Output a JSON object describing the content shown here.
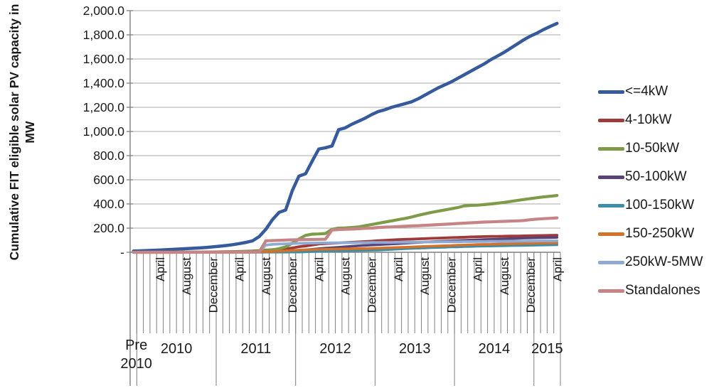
{
  "chart_data": {
    "type": "line",
    "title": "",
    "ylabel": "Cumulative FIT eligible solar PV capacity in MW",
    "ylabel_line1": "Cumulative FIT eligible solar PV capacity in",
    "ylabel_line2": "MW",
    "ylim": [
      0,
      2000
    ],
    "grid": true,
    "legend_position": "right",
    "y_ticks": [
      {
        "label": "2,000.0",
        "value": 2000
      },
      {
        "label": "1,800.0",
        "value": 1800
      },
      {
        "label": "1,600.0",
        "value": 1600
      },
      {
        "label": "1,400.0",
        "value": 1400
      },
      {
        "label": "1,200.0",
        "value": 1200
      },
      {
        "label": "1,000.0",
        "value": 1000
      },
      {
        "label": "800.0",
        "value": 800
      },
      {
        "label": "600.0",
        "value": 600
      },
      {
        "label": "400.0",
        "value": 400
      },
      {
        "label": "200.0",
        "value": 200
      },
      {
        "label": "-",
        "value": 0
      }
    ],
    "x_axis": {
      "first_category": "Pre 2010",
      "first_category_line1": "Pre",
      "first_category_line2": "2010",
      "year_groups": [
        {
          "year": "2010",
          "months": 12
        },
        {
          "year": "2011",
          "months": 12
        },
        {
          "year": "2012",
          "months": 12
        },
        {
          "year": "2013",
          "months": 12
        },
        {
          "year": "2014",
          "months": 12
        },
        {
          "year": "2015",
          "months": 4
        }
      ],
      "month_names": {
        "4": "April",
        "8": "August",
        "12": "December"
      }
    },
    "series": [
      {
        "name": "<=4kW",
        "color": "#365A9B",
        "width": 4.5,
        "values": [
          10,
          12,
          14,
          16,
          18,
          21,
          24,
          27,
          30,
          33,
          36,
          40,
          45,
          50,
          56,
          63,
          72,
          82,
          95,
          130,
          190,
          270,
          330,
          350,
          510,
          630,
          650,
          755,
          855,
          865,
          880,
          1015,
          1030,
          1060,
          1085,
          1110,
          1140,
          1165,
          1180,
          1200,
          1215,
          1230,
          1245,
          1270,
          1300,
          1330,
          1360,
          1385,
          1410,
          1440,
          1470,
          1500,
          1530,
          1560,
          1595,
          1625,
          1655,
          1690,
          1725,
          1760,
          1790,
          1815,
          1845,
          1870,
          1895
        ]
      },
      {
        "name": "4-10kW",
        "color": "#9E3B38",
        "width": 3.8,
        "values": [
          0,
          0,
          0,
          0,
          1,
          1,
          1,
          1,
          2,
          2,
          2,
          3,
          3,
          4,
          5,
          6,
          7,
          9,
          11,
          14,
          18,
          22,
          26,
          29,
          36,
          46,
          52,
          60,
          68,
          71,
          74,
          77,
          80,
          83,
          86,
          89,
          92,
          96,
          99,
          102,
          105,
          107,
          109,
          111,
          113,
          115,
          117,
          119,
          121,
          123,
          125,
          127,
          128,
          130,
          131,
          132,
          133,
          134,
          135,
          136,
          137,
          138,
          139,
          140,
          141
        ]
      },
      {
        "name": "10-50kW",
        "color": "#7D9B49",
        "width": 4.2,
        "values": [
          0,
          0,
          0,
          0,
          0,
          0,
          0,
          1,
          1,
          1,
          1,
          1,
          1,
          2,
          2,
          3,
          4,
          6,
          8,
          10,
          14,
          20,
          30,
          45,
          75,
          110,
          140,
          150,
          152,
          155,
          190,
          200,
          202,
          205,
          210,
          220,
          230,
          240,
          250,
          260,
          270,
          280,
          292,
          305,
          318,
          330,
          340,
          350,
          360,
          370,
          385,
          388,
          390,
          395,
          400,
          406,
          413,
          421,
          429,
          437,
          445,
          452,
          458,
          464,
          470
        ]
      },
      {
        "name": "50-100kW",
        "color": "#5A4377",
        "width": 3.6,
        "values": [
          0,
          0,
          0,
          0,
          0,
          0,
          0,
          0,
          0,
          0,
          0,
          0,
          0,
          0,
          0,
          1,
          1,
          2,
          2,
          3,
          4,
          5,
          7,
          9,
          12,
          16,
          20,
          25,
          30,
          34,
          38,
          42,
          46,
          50,
          54,
          57,
          60,
          63,
          66,
          69,
          72,
          75,
          78,
          81,
          84,
          87,
          90,
          92,
          95,
          97,
          99,
          101,
          103,
          105,
          107,
          109,
          111,
          113,
          115,
          117,
          119,
          120,
          121,
          122,
          123
        ]
      },
      {
        "name": "100-150kW",
        "color": "#3D8CA8",
        "width": 3.6,
        "values": [
          0,
          0,
          0,
          0,
          0,
          0,
          0,
          0,
          0,
          0,
          0,
          0,
          0,
          0,
          0,
          0,
          0,
          0,
          0,
          0,
          1,
          1,
          1,
          1,
          2,
          2,
          4,
          6,
          8,
          10,
          11,
          12,
          13,
          14,
          15,
          16,
          17,
          18,
          21,
          24,
          27,
          30,
          32,
          34,
          36,
          38,
          40,
          42,
          44,
          45,
          47,
          48,
          50,
          51,
          52,
          53,
          54,
          55,
          56,
          57,
          58,
          59,
          60,
          61,
          62
        ]
      },
      {
        "name": "150-250kW",
        "color": "#D4712B",
        "width": 3.6,
        "values": [
          0,
          0,
          0,
          0,
          0,
          0,
          0,
          0,
          0,
          0,
          0,
          0,
          0,
          0,
          0,
          1,
          1,
          2,
          3,
          4,
          5,
          8,
          10,
          12,
          15,
          18,
          20,
          22,
          24,
          25,
          26,
          27,
          28,
          29,
          30,
          31,
          32,
          34,
          36,
          38,
          40,
          42,
          44,
          46,
          48,
          50,
          52,
          54,
          56,
          58,
          60,
          62,
          64,
          65,
          66,
          68,
          69,
          70,
          72,
          73,
          74,
          75,
          76,
          77,
          78
        ]
      },
      {
        "name": "250kW-5MW",
        "color": "#90ABD3",
        "width": 3.8,
        "values": [
          0,
          0,
          0,
          0,
          0,
          0,
          0,
          0,
          0,
          0,
          0,
          0,
          0,
          0,
          0,
          1,
          1,
          2,
          3,
          5,
          60,
          65,
          68,
          70,
          72,
          74,
          75,
          76,
          77,
          77,
          78,
          78,
          79,
          79,
          80,
          80,
          81,
          81,
          82,
          82,
          83,
          83,
          84,
          84,
          85,
          85,
          86,
          86,
          87,
          87,
          88,
          88,
          89,
          89,
          90,
          90,
          91,
          91,
          92,
          92,
          93,
          93,
          94,
          94,
          95
        ]
      },
      {
        "name": "Standalones",
        "color": "#C68486",
        "width": 4.2,
        "values": [
          0,
          0,
          0,
          0,
          0,
          0,
          0,
          0,
          0,
          0,
          0,
          0,
          0,
          0,
          0,
          0,
          1,
          1,
          1,
          2,
          95,
          97,
          99,
          101,
          103,
          104,
          105,
          106,
          107,
          108,
          185,
          188,
          190,
          192,
          195,
          198,
          200,
          205,
          208,
          210,
          213,
          215,
          218,
          220,
          223,
          226,
          229,
          232,
          235,
          238,
          241,
          244,
          247,
          250,
          252,
          254,
          256,
          258,
          260,
          263,
          270,
          275,
          278,
          281,
          285
        ]
      }
    ],
    "colors": {
      "grid": "#A8A8A8",
      "axis": "#7F7F7F",
      "text": "#1A1A1A"
    }
  }
}
